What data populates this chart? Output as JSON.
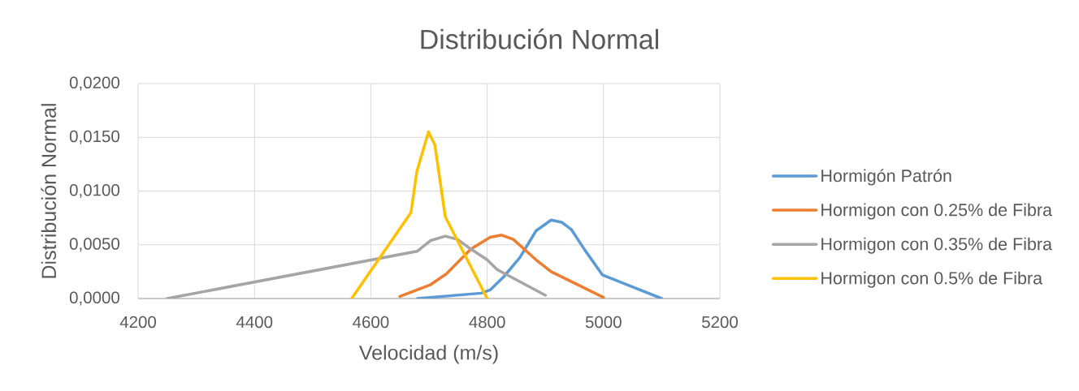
{
  "chart_data": {
    "type": "line",
    "title": "Distribución Normal",
    "xlabel": "Velocidad (m/s)",
    "ylabel": "Distribución Normal",
    "series": [
      {
        "name": "Hormigón Patrón",
        "color": "#5b9bd5",
        "x": [
          4680,
          4790,
          4805,
          4828,
          4856,
          4884,
          4910,
          4928,
          4945,
          4968,
          4998,
          5100
        ],
        "values": [
          0,
          0.0005,
          0.0008,
          0.002,
          0.0038,
          0.0063,
          0.0073,
          0.0071,
          0.0064,
          0.0045,
          0.0022,
          0
        ]
      },
      {
        "name": "Hormigon con 0.25% de Fibra",
        "color": "#ed7d31",
        "x": [
          4650,
          4703,
          4730,
          4772,
          4805,
          4825,
          4845,
          4884,
          4910,
          5000
        ],
        "values": [
          0.0002,
          0.0013,
          0.0023,
          0.0046,
          0.0057,
          0.0059,
          0.0055,
          0.0036,
          0.0025,
          0.0001
        ]
      },
      {
        "name": "Hormigon con 0.35% de Fibra",
        "color": "#a5a5a5",
        "x": [
          4250,
          4680,
          4703,
          4728,
          4749,
          4772,
          4800,
          4817,
          4900
        ],
        "values": [
          0,
          0.0044,
          0.0054,
          0.0058,
          0.0055,
          0.0046,
          0.0036,
          0.0027,
          0.0003
        ]
      },
      {
        "name": "Hormigon con 0.5% de Fibra",
        "color": "#ffc000",
        "x": [
          4567,
          4669,
          4679,
          4699,
          4710,
          4728,
          4800
        ],
        "values": [
          0,
          0.008,
          0.0118,
          0.0155,
          0.0143,
          0.0076,
          0
        ]
      }
    ],
    "xlim": [
      4200,
      5200
    ],
    "xticks": [
      4200,
      4400,
      4600,
      4800,
      5000,
      5200
    ],
    "ylim": [
      0,
      0.02
    ],
    "yticks": [
      {
        "value": 0,
        "label": "0,0000"
      },
      {
        "value": 0.005,
        "label": "0,0050"
      },
      {
        "value": 0.01,
        "label": "0,0100"
      },
      {
        "value": 0.015,
        "label": "0,0150"
      },
      {
        "value": 0.02,
        "label": "0,0200"
      }
    ],
    "grid": true,
    "legend": "right",
    "line_style": "solid"
  }
}
